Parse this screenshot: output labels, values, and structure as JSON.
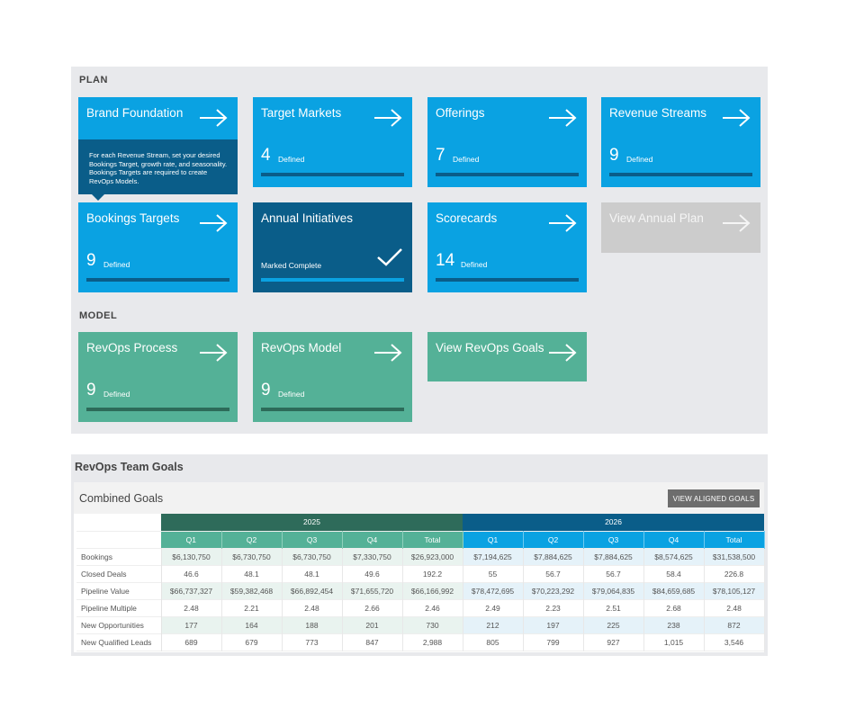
{
  "plan": {
    "section_label": "PLAN",
    "tiles": [
      {
        "title": "Brand Foundation"
      },
      {
        "title": "Target Markets",
        "count": "4",
        "count_label": "Defined"
      },
      {
        "title": "Offerings",
        "count": "7",
        "count_label": "Defined"
      },
      {
        "title": "Revenue Streams",
        "count": "9",
        "count_label": "Defined"
      },
      {
        "title": "Bookings Targets",
        "count": "9",
        "count_label": "Defined"
      },
      {
        "title": "Annual Initiatives",
        "status_label": "Marked Complete"
      },
      {
        "title": "Scorecards",
        "count": "14",
        "count_label": "Defined"
      },
      {
        "title": "View Annual Plan"
      }
    ],
    "tooltip": "For each Revenue Stream, set your desired Bookings Target, growth rate, and seasonality. Bookings Targets are required to create RevOps Models."
  },
  "model": {
    "section_label": "MODEL",
    "tiles": [
      {
        "title": "RevOps Process",
        "count": "9",
        "count_label": "Defined"
      },
      {
        "title": "RevOps Model",
        "count": "9",
        "count_label": "Defined"
      },
      {
        "title": "View RevOps Goals"
      }
    ]
  },
  "goals": {
    "title": "RevOps Team Goals",
    "combined_title": "Combined Goals",
    "aligned_button": "VIEW ALIGNED GOALS",
    "years": [
      "2025",
      "2026"
    ],
    "quarters": [
      "Q1",
      "Q2",
      "Q3",
      "Q4",
      "Total"
    ],
    "rows": [
      {
        "label": "Bookings",
        "y2025": [
          "$6,130,750",
          "$6,730,750",
          "$6,730,750",
          "$7,330,750",
          "$26,923,000"
        ],
        "y2026": [
          "$7,194,625",
          "$7,884,625",
          "$7,884,625",
          "$8,574,625",
          "$31,538,500"
        ]
      },
      {
        "label": "Closed Deals",
        "y2025": [
          "46.6",
          "48.1",
          "48.1",
          "49.6",
          "192.2"
        ],
        "y2026": [
          "55",
          "56.7",
          "56.7",
          "58.4",
          "226.8"
        ]
      },
      {
        "label": "Pipeline Value",
        "y2025": [
          "$66,737,327",
          "$59,382,468",
          "$66,892,454",
          "$71,655,720",
          "$66,166,992"
        ],
        "y2026": [
          "$78,472,695",
          "$70,223,292",
          "$79,064,835",
          "$84,659,685",
          "$78,105,127"
        ]
      },
      {
        "label": "Pipeline Multiple",
        "y2025": [
          "2.48",
          "2.21",
          "2.48",
          "2.66",
          "2.46"
        ],
        "y2026": [
          "2.49",
          "2.23",
          "2.51",
          "2.68",
          "2.48"
        ]
      },
      {
        "label": "New Opportunities",
        "y2025": [
          "177",
          "164",
          "188",
          "201",
          "730"
        ],
        "y2026": [
          "212",
          "197",
          "225",
          "238",
          "872"
        ]
      },
      {
        "label": "New Qualified Leads",
        "y2025": [
          "689",
          "679",
          "773",
          "847",
          "2,988"
        ],
        "y2026": [
          "805",
          "799",
          "927",
          "1,015",
          "3,546"
        ]
      }
    ]
  },
  "colors": {
    "tile_blue": "#0aa2e2",
    "tile_dark": "#0a5d89",
    "tile_gray": "#cccccc",
    "tile_green": "#54b197",
    "year_2025": "#2e6b5a",
    "year_2026": "#0a5d89"
  },
  "icons": {
    "arrow": "arrow-right-icon",
    "check": "checkmark-icon"
  }
}
